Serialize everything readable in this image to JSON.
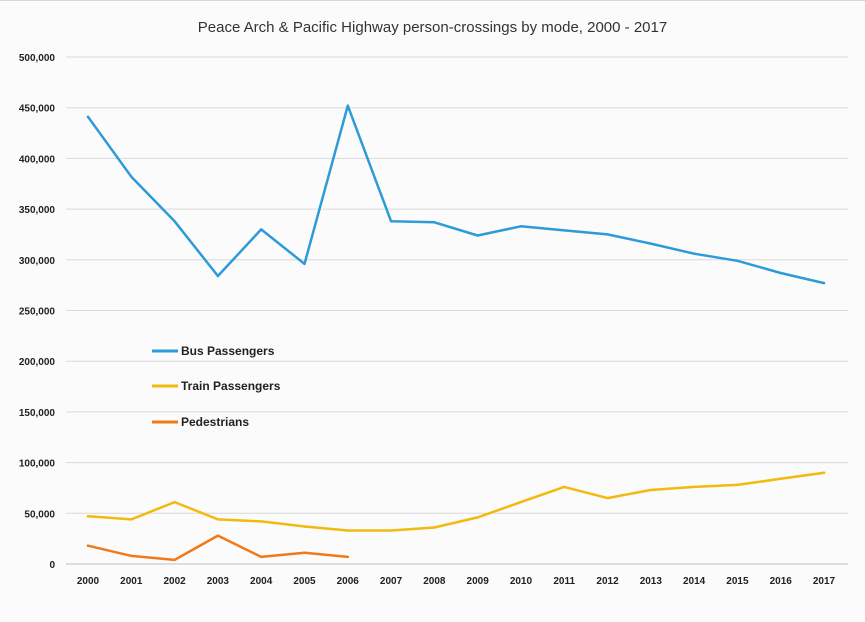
{
  "chart_data": {
    "type": "line",
    "title": "Peace Arch & Pacific Highway person-crossings by mode, 2000 - 2017",
    "xlabel": "",
    "ylabel": "",
    "x": [
      "2000",
      "2001",
      "2002",
      "2003",
      "2004",
      "2005",
      "2006",
      "2007",
      "2008",
      "2009",
      "2010",
      "2011",
      "2012",
      "2013",
      "2014",
      "2015",
      "2016",
      "2017"
    ],
    "y_ticks": [
      "0",
      "50,000",
      "100,000",
      "150,000",
      "200,000",
      "250,000",
      "300,000",
      "350,000",
      "400,000",
      "450,000",
      "500,000"
    ],
    "ylim": [
      0,
      500000
    ],
    "grid": true,
    "legend_position": "center-left",
    "series": [
      {
        "name": "Bus Passengers",
        "color": "#2e9bd9",
        "values": [
          441000,
          382000,
          338000,
          284000,
          330000,
          296000,
          452000,
          338000,
          337000,
          324000,
          333000,
          329000,
          325000,
          316000,
          306000,
          299000,
          287000,
          277000
        ]
      },
      {
        "name": "Train Passengers",
        "color": "#f2b90f",
        "values": [
          47000,
          44000,
          61000,
          44000,
          42000,
          37000,
          33000,
          33000,
          36000,
          46000,
          61000,
          76000,
          65000,
          73000,
          76000,
          78000,
          84000,
          90000
        ]
      },
      {
        "name": "Pedestrians",
        "color": "#f07a1a",
        "values": [
          18000,
          8000,
          4000,
          28000,
          7000,
          11000,
          7000,
          null,
          null,
          null,
          null,
          null,
          null,
          null,
          null,
          null,
          null,
          null
        ]
      }
    ]
  }
}
